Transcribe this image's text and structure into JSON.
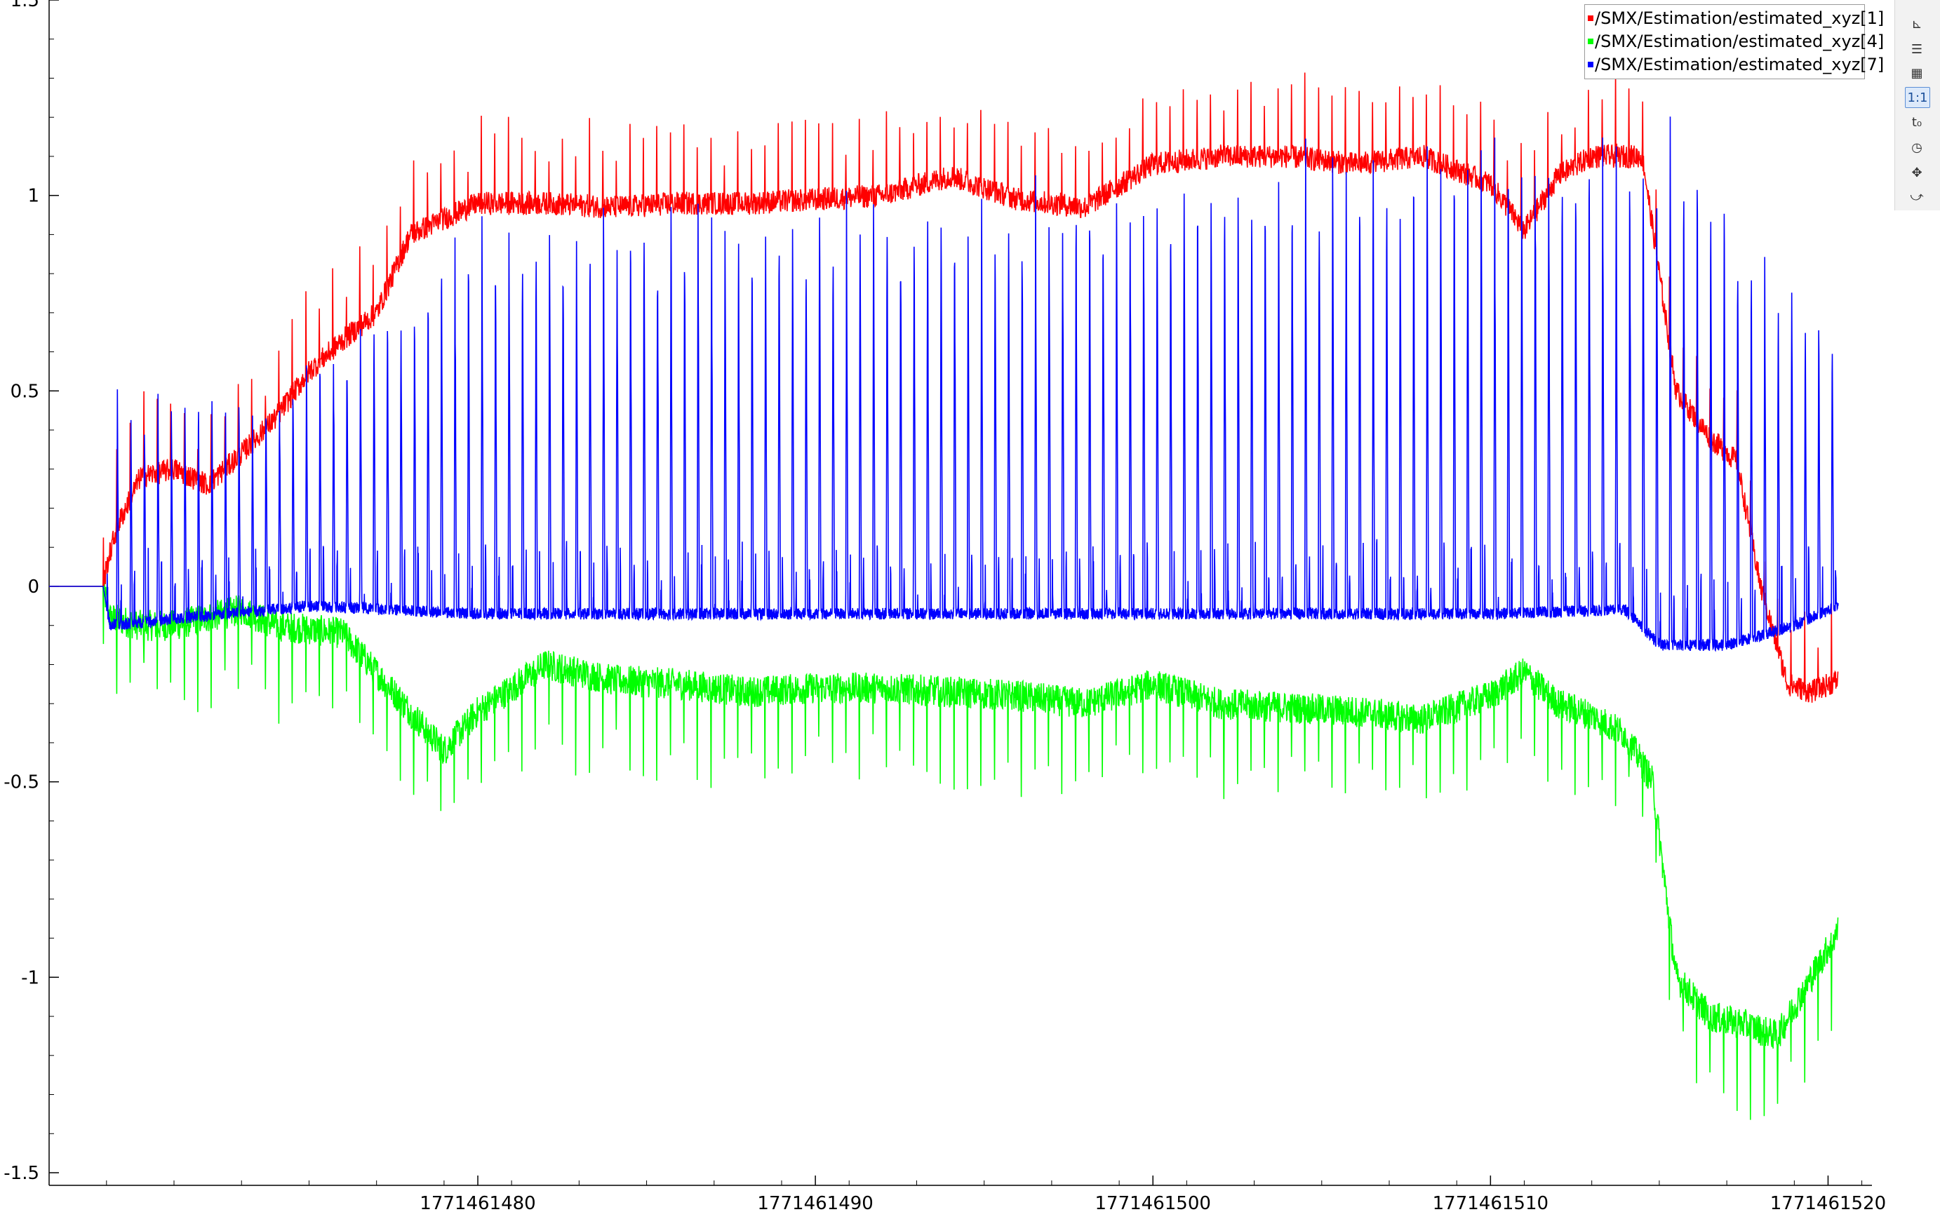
{
  "chart_data": {
    "type": "line",
    "x_range": [
      1771461467.3,
      1771461521.3
    ],
    "ylim": [
      -1.5,
      1.5
    ],
    "x_ticks": [
      1771461480,
      1771461490,
      1771461500,
      1771461510,
      1771461520
    ],
    "x_tick_labels": [
      "1771461480",
      "1771461490",
      "1771461500",
      "1771461510",
      "1771461520"
    ],
    "y_ticks": [
      -1.5,
      -1,
      -0.5,
      0,
      0.5,
      1,
      1.5
    ],
    "y_tick_labels": [
      "-1.5",
      "-1",
      "-0.5",
      "0",
      "0.5",
      "1",
      "1.5"
    ],
    "legend_position": "top-right",
    "series": [
      {
        "name": "/SMX/Estimation/estimated_xyz[1]",
        "color": "#ff0000",
        "x": [
          1771461467.3,
          1771461468.9,
          1771461469.0,
          1771461469.3,
          1771461470.0,
          1771461471.0,
          1771461472.0,
          1771461473.0,
          1771461474.0,
          1771461475.0,
          1771461476.0,
          1771461477.0,
          1771461478.0,
          1771461480.0,
          1771461482.0,
          1771461484.0,
          1771461486.0,
          1771461488.0,
          1771461490.0,
          1771461492.0,
          1771461494.0,
          1771461496.0,
          1771461498.0,
          1771461500.0,
          1771461502.0,
          1771461504.0,
          1771461506.0,
          1771461508.0,
          1771461510.0,
          1771461511.0,
          1771461512.0,
          1771461513.0,
          1771461514.5,
          1771461515.5,
          1771461516.5,
          1771461517.3,
          1771461518.0,
          1771461518.8,
          1771461519.5,
          1771461520.3
        ],
        "y": [
          0.0,
          0.0,
          0.05,
          0.15,
          0.28,
          0.3,
          0.26,
          0.34,
          0.43,
          0.55,
          0.63,
          0.7,
          0.9,
          0.98,
          0.98,
          0.97,
          0.98,
          0.98,
          0.99,
          1.0,
          1.05,
          0.99,
          0.97,
          1.08,
          1.1,
          1.1,
          1.08,
          1.1,
          1.03,
          0.91,
          1.05,
          1.1,
          1.1,
          0.5,
          0.38,
          0.32,
          0.0,
          -0.25,
          -0.27,
          -0.24
        ]
      },
      {
        "name": "/SMX/Estimation/estimated_xyz[4]",
        "color": "#00ff00",
        "x": [
          1771461467.3,
          1771461468.9,
          1771461469.1,
          1771461470.0,
          1771461471.0,
          1771461472.0,
          1771461473.0,
          1771461474.0,
          1771461476.0,
          1771461477.0,
          1771461478.0,
          1771461479.0,
          1771461480.0,
          1771461482.0,
          1771461484.0,
          1771461486.0,
          1771461488.0,
          1771461490.0,
          1771461492.0,
          1771461494.0,
          1771461496.0,
          1771461498.0,
          1771461500.0,
          1771461502.0,
          1771461504.0,
          1771461506.0,
          1771461508.0,
          1771461510.0,
          1771461511.0,
          1771461512.0,
          1771461513.0,
          1771461514.0,
          1771461514.8,
          1771461515.5,
          1771461516.5,
          1771461517.5,
          1771461518.5,
          1771461519.5,
          1771461520.3
        ],
        "y": [
          0.0,
          0.0,
          -0.08,
          -0.1,
          -0.1,
          -0.08,
          -0.06,
          -0.1,
          -0.12,
          -0.22,
          -0.32,
          -0.42,
          -0.32,
          -0.2,
          -0.24,
          -0.25,
          -0.27,
          -0.26,
          -0.26,
          -0.27,
          -0.28,
          -0.3,
          -0.25,
          -0.3,
          -0.31,
          -0.32,
          -0.34,
          -0.28,
          -0.22,
          -0.3,
          -0.33,
          -0.38,
          -0.5,
          -1.0,
          -1.1,
          -1.12,
          -1.15,
          -1.0,
          -0.88
        ]
      },
      {
        "name": "/SMX/Estimation/estimated_xyz[7]",
        "color": "#0000ff",
        "x": [
          1771461467.3,
          1771461468.9,
          1771461469.1,
          1771461475.0,
          1771461480.0,
          1771461485.0,
          1771461490.0,
          1771461495.0,
          1771461500.0,
          1771461505.0,
          1771461510.0,
          1771461514.0,
          1771461515.0,
          1771461517.0,
          1771461519.0,
          1771461520.3
        ],
        "y": [
          0.0,
          0.0,
          -0.1,
          -0.05,
          -0.07,
          -0.07,
          -0.07,
          -0.07,
          -0.07,
          -0.07,
          -0.07,
          -0.06,
          -0.15,
          -0.15,
          -0.1,
          -0.05
        ],
        "pulse_envelope": {
          "note": "periodic spikes rising from the baseline to the values below",
          "x": [
            1771461469.5,
            1771461473.0,
            1771461475.0,
            1771461478.0,
            1771461480.0,
            1771461490.0,
            1771461500.0,
            1771461505.0,
            1771461510.0,
            1771461513.0,
            1771461515.5,
            1771461518.0,
            1771461520.3
          ],
          "peak": [
            0.5,
            0.48,
            0.6,
            0.8,
            0.95,
            1.0,
            1.05,
            1.1,
            1.15,
            1.2,
            1.2,
            0.85,
            0.7
          ]
        }
      }
    ]
  },
  "legend": {
    "items": [
      {
        "label": "/SMX/Estimation/estimated_xyz[1]",
        "color": "#ff0000"
      },
      {
        "label": "/SMX/Estimation/estimated_xyz[4]",
        "color": "#00ff00"
      },
      {
        "label": "/SMX/Estimation/estimated_xyz[7]",
        "color": "#0000ff"
      }
    ]
  },
  "toolbar": {
    "items": [
      {
        "icon": "chart-axis-icon",
        "glyph": "⊾",
        "active": false
      },
      {
        "icon": "legend-list-icon",
        "glyph": "☰",
        "active": false
      },
      {
        "icon": "grid-icon",
        "glyph": "▦",
        "active": false
      },
      {
        "icon": "ratio-1to1-icon",
        "glyph": "1:1",
        "active": true
      },
      {
        "icon": "time-offset-icon",
        "glyph": "t₀",
        "active": false
      },
      {
        "icon": "clock-icon",
        "glyph": "◷",
        "active": false
      },
      {
        "icon": "move-icon",
        "glyph": "✥",
        "active": false
      },
      {
        "icon": "curve-points-icon",
        "glyph": "⤻",
        "active": false
      }
    ]
  }
}
